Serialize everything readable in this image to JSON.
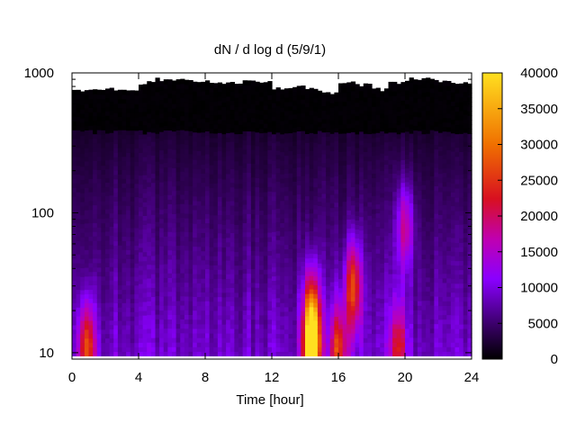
{
  "chart_data": {
    "type": "heatmap",
    "title": "dN / d log d (5/9/1)",
    "xlabel": "Time [hour]",
    "ylabel": "",
    "x_range": [
      0,
      24
    ],
    "x_ticks": [
      0,
      4,
      8,
      12,
      16,
      20,
      24
    ],
    "y_scale": "log",
    "y_range": [
      9,
      1000
    ],
    "y_ticks": [
      10,
      100,
      1000
    ],
    "y_data_min": 9.5,
    "colorbar": {
      "range": [
        0,
        40000
      ],
      "ticks": [
        0,
        5000,
        10000,
        15000,
        20000,
        25000,
        30000,
        35000,
        40000
      ],
      "palette": "black-purple-red-orange-yellow",
      "stops": [
        "#000000",
        "#3a0068",
        "#8a00ff",
        "#c000b0",
        "#d81020",
        "#f07000",
        "#ffe020"
      ]
    },
    "background_level_bottom": 9000,
    "top_cutoff_diameter": [
      [
        0,
        760
      ],
      [
        1,
        760
      ],
      [
        2,
        760
      ],
      [
        3,
        740
      ],
      [
        4,
        850
      ],
      [
        5,
        900
      ],
      [
        6,
        900
      ],
      [
        7,
        880
      ],
      [
        8,
        860
      ],
      [
        9,
        860
      ],
      [
        10,
        860
      ],
      [
        11,
        860
      ],
      [
        12,
        780
      ],
      [
        13,
        800
      ],
      [
        14,
        760
      ],
      [
        15,
        720
      ],
      [
        16,
        860
      ],
      [
        17,
        820
      ],
      [
        18,
        760
      ],
      [
        19,
        860
      ],
      [
        20,
        900
      ],
      [
        21,
        900
      ],
      [
        22,
        860
      ],
      [
        23,
        860
      ],
      [
        24,
        860
      ]
    ],
    "dark_band_lower_diameter": 380,
    "hotspots": [
      {
        "time": 0.9,
        "diameter": 11,
        "value": 22000
      },
      {
        "time": 14.4,
        "diameter": 10.5,
        "value": 38000
      },
      {
        "time": 14.4,
        "diameter": 20,
        "value": 21000
      },
      {
        "time": 16.0,
        "diameter": 10.5,
        "value": 20000
      },
      {
        "time": 16.9,
        "diameter": 30,
        "value": 22000
      },
      {
        "time": 19.6,
        "diameter": 11,
        "value": 15000
      },
      {
        "time": 20.0,
        "diameter": 80,
        "value": 14000
      }
    ]
  }
}
